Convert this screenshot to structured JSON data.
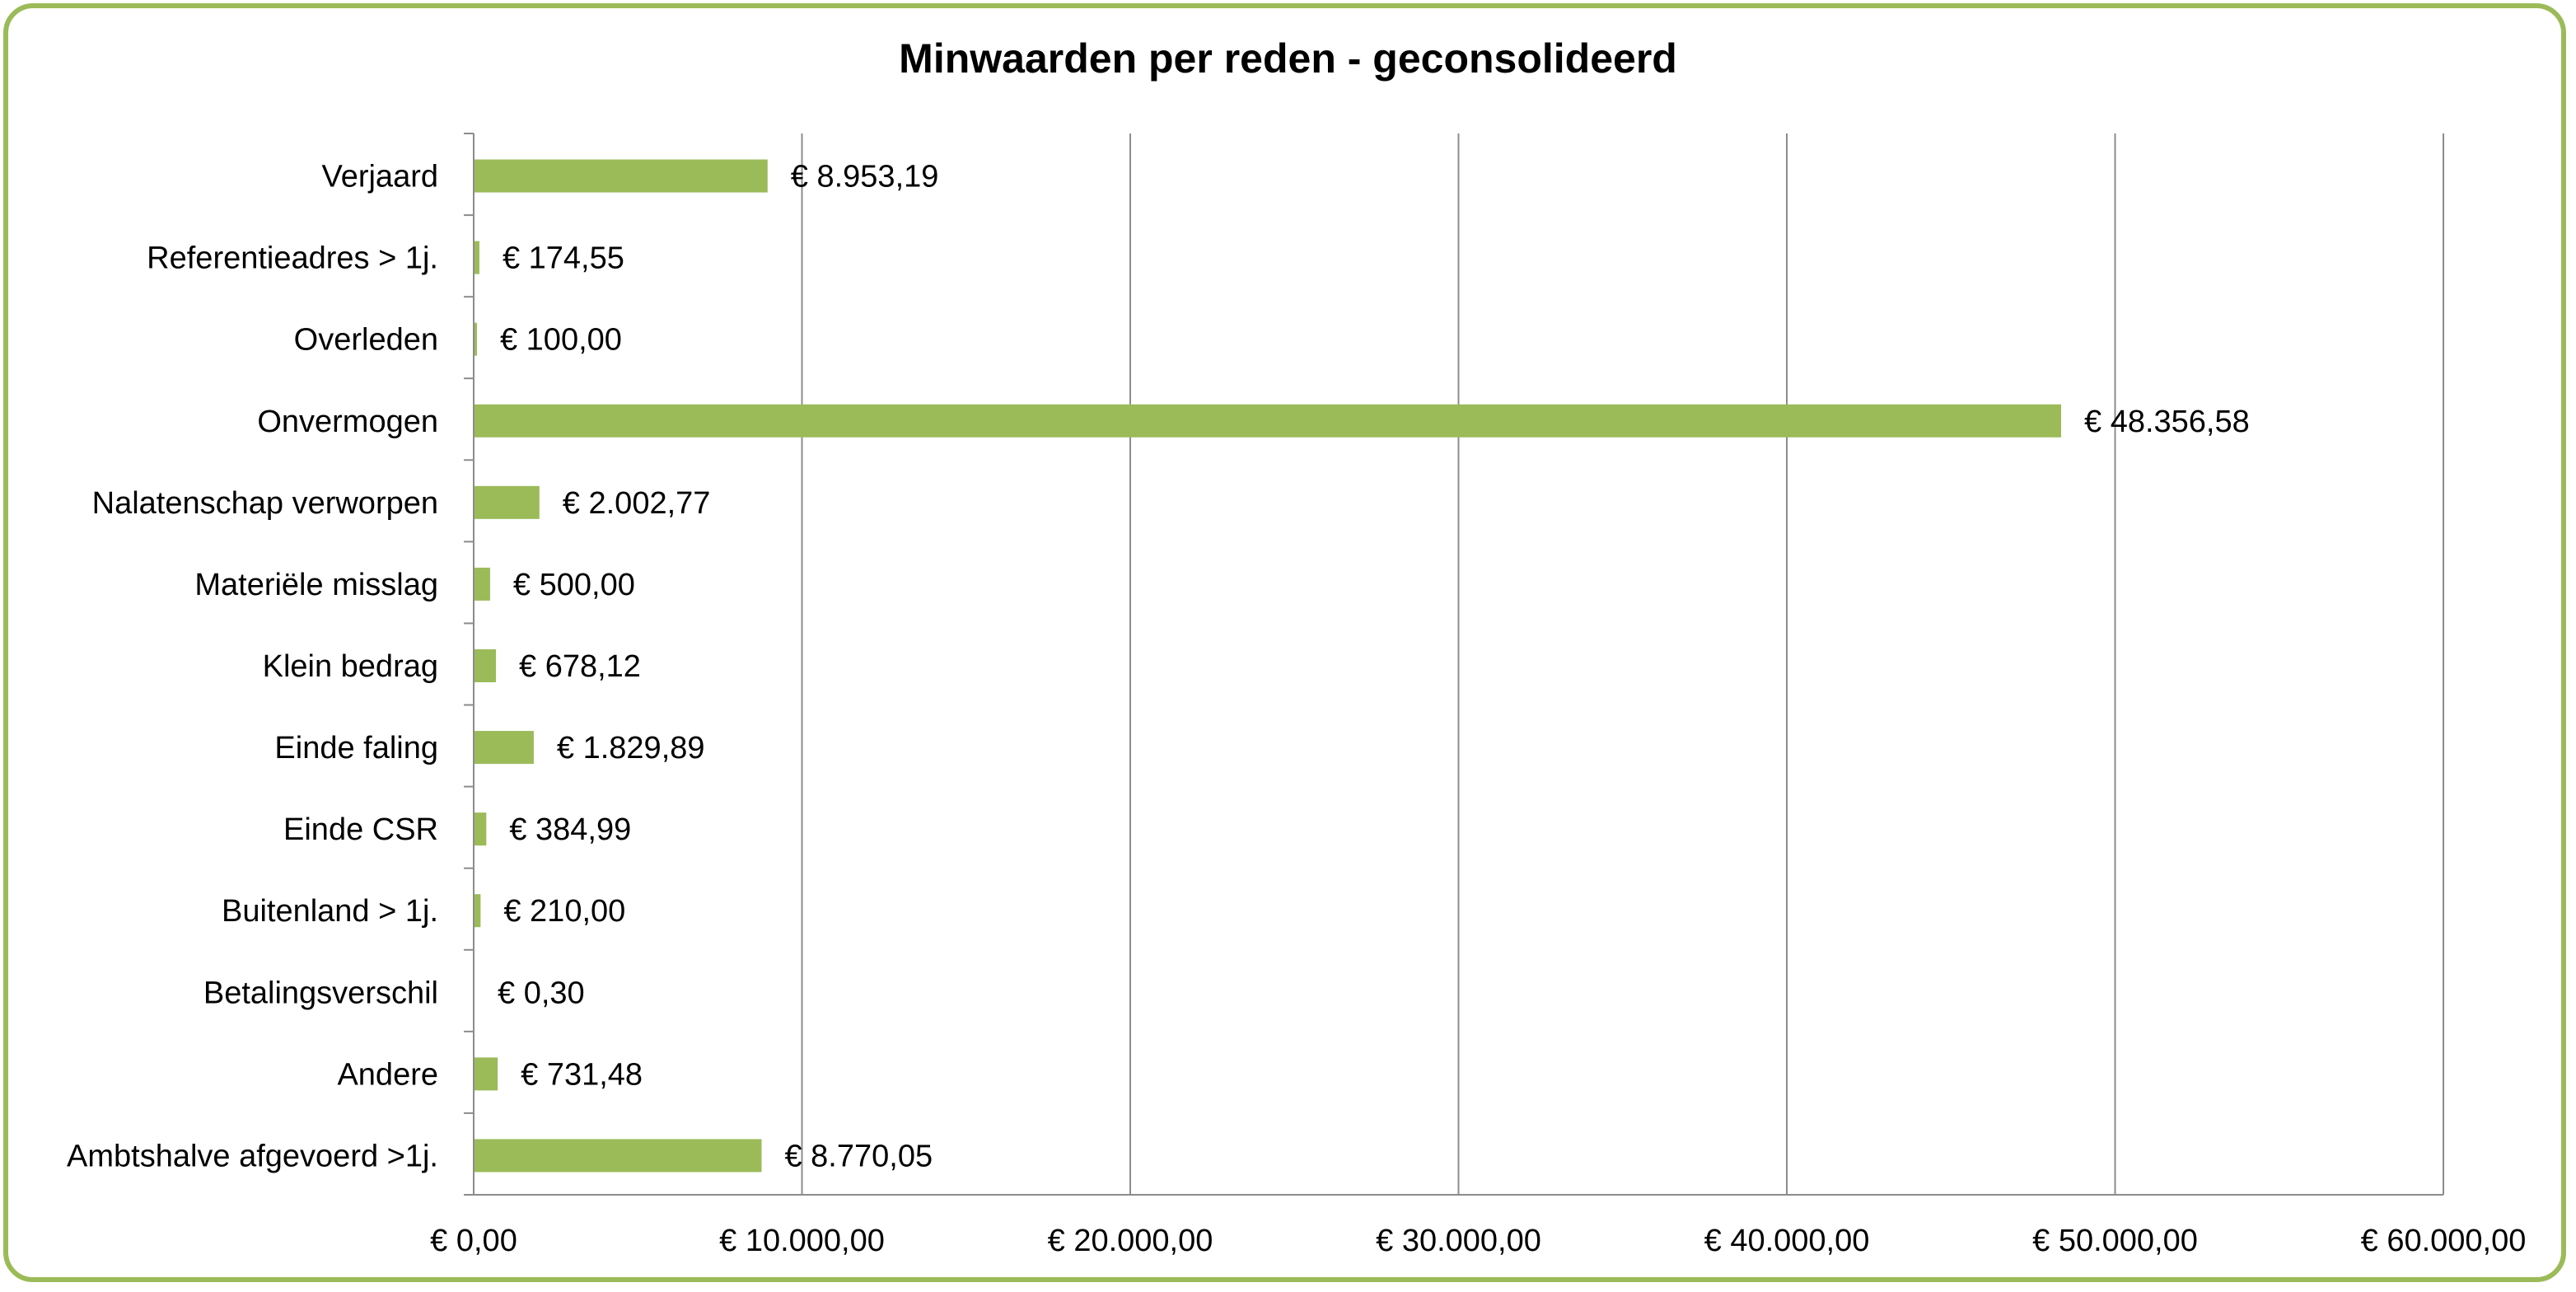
{
  "chart_data": {
    "type": "bar",
    "orientation": "horizontal",
    "title": "Minwaarden per reden - geconsolideerd",
    "xlabel": "",
    "ylabel": "",
    "xlim": [
      0,
      60000
    ],
    "grid": true,
    "bar_color": "#9bbb59",
    "border_color": "#9bbb59",
    "x_ticks": [
      0,
      10000,
      20000,
      30000,
      40000,
      50000,
      60000
    ],
    "x_tick_labels": [
      "€ 0,00",
      "€ 10.000,00",
      "€ 20.000,00",
      "€ 30.000,00",
      "€ 40.000,00",
      "€ 50.000,00",
      "€ 60.000,00"
    ],
    "categories": [
      "Verjaard",
      "Referentieadres > 1j.",
      "Overleden",
      "Onvermogen",
      "Nalatenschap verworpen",
      "Materiële misslag",
      "Klein bedrag",
      "Einde faling",
      "Einde CSR",
      "Buitenland > 1j.",
      "Betalingsverschil",
      "Andere",
      "Ambtshalve afgevoerd >1j."
    ],
    "values": [
      8953.19,
      174.55,
      100.0,
      48356.58,
      2002.77,
      500.0,
      678.12,
      1829.89,
      384.99,
      210.0,
      0.3,
      731.48,
      8770.05
    ],
    "value_labels": [
      "€ 8.953,19",
      "€ 174,55",
      "€ 100,00",
      "€ 48.356,58",
      "€ 2.002,77",
      "€ 500,00",
      "€ 678,12",
      "€ 1.829,89",
      "€ 384,99",
      "€ 210,00",
      "€ 0,30",
      "€ 731,48",
      "€ 8.770,05"
    ]
  }
}
